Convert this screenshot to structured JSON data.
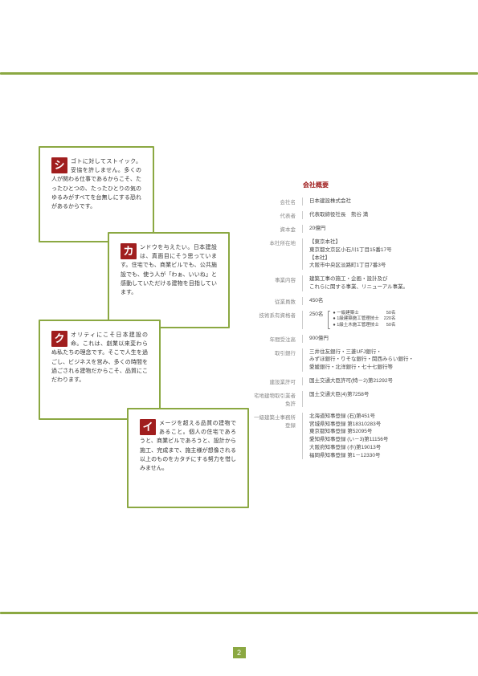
{
  "cards": [
    {
      "letter": "シ",
      "text": "ゴトに対してストイック。妥協を許しません。多くの人が関わる仕事であるからこそ、たったひとつの、たったひとりの気のゆるみがすべてを台無しにする恐れがあるからです。"
    },
    {
      "letter": "カ",
      "text": "ンドウを与えたい。日本建設は、真面目にそう思っています。住宅でも、商業ビルでも、公共施設でも、使う人が「わぁ、いいね」と感動していただける建物を目指しています。"
    },
    {
      "letter": "ク",
      "text": "オリティにこそ日本建設の命。これは、創業以来変わらぬ私たちの理念です。そこで人生を過ごし、ビジネスを営み、多くの時間を過ごされる建物だからこそ、品質にこだわります。"
    },
    {
      "letter": "イ",
      "text": "メージを超える品質の建物であること。個人の住宅であろうと、商業ビルであろうと、設計から施工、完成まで、施主様が想像される以上のものをカタチにする努力を惜しみません。"
    }
  ],
  "profile": {
    "title": "会社概要",
    "rows": [
      {
        "label": "会社名",
        "value": "日本建設株式会社"
      },
      {
        "label": "代表者",
        "value": "代表取締役社長　熊谷 満"
      },
      {
        "label": "資本金",
        "value": "20億円"
      },
      {
        "label": "本社所在地",
        "value_html": "【東京本社】<br>東京都文京区小石川1丁目15番17号<br>【本社】<br>大阪市中央区淡路町1丁目7番3号"
      },
      {
        "label": "事業内容",
        "value_html": "建築工事の施工・企画・設計及び<br>これらに関する事業、リニューアル事業。"
      },
      {
        "label": "従業員数",
        "value": "450名"
      },
      {
        "label": "技術系有資格者",
        "qual": {
          "count": "250名",
          "items": [
            {
              "name": "一級建築士",
              "num": "50名"
            },
            {
              "name": "1級建築施工管理技士",
              "num": "220名"
            },
            {
              "name": "1級土木施工管理技士",
              "num": "50名"
            }
          ]
        }
      },
      {
        "label": "年間受注高",
        "value": "900億円"
      },
      {
        "label": "取引銀行",
        "value_html": "三井住友銀行・三菱UFJ銀行・<br>みずほ銀行・りそな銀行・関西みらい銀行・<br>愛媛銀行・北洋銀行・七十七銀行等"
      },
      {
        "label": "建設業許可",
        "value": "国土交通大臣許可(特－2)第21292号"
      },
      {
        "label": "宅地建物取引業者免許",
        "value": "国土交通大臣(4)第7258号"
      },
      {
        "label": "一級建築士事務所登録",
        "value_html": "北海道知事登録 (石)第451号<br>宮城県知事登録 第18310283号<br>東京都知事登録 第52095号<br>愛知県知事登録 (い－3)第11156号<br>大阪府知事登録 (ホ)第19013号<br>福岡県知事登録 第1－12330号"
      }
    ]
  },
  "page": "2"
}
